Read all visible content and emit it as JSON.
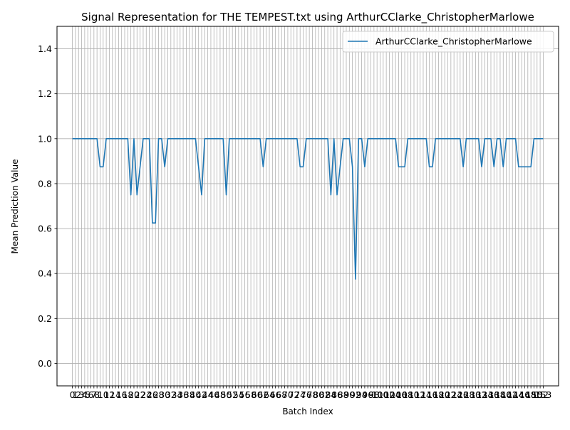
{
  "chart_data": {
    "type": "line",
    "title": "Signal Representation for THE TEMPEST.txt using ArthurCClarke_ChristopherMarlowe",
    "xlabel": "Batch Index",
    "ylabel": "Mean Prediction Value",
    "xlim": [
      -5,
      158
    ],
    "ylim": [
      -0.1,
      1.5
    ],
    "yticks": [
      "0.0",
      "0.2",
      "0.4",
      "0.6",
      "0.8",
      "1.0",
      "1.2",
      "1.4"
    ],
    "xtick_labels_visible_start": [
      "0",
      "1",
      "2",
      "3",
      "4",
      "5",
      "6",
      "7",
      "8"
    ],
    "xtick_labels_visible_end": [
      "153"
    ],
    "grid": true,
    "legend": {
      "position": "top-right",
      "entries": [
        "ArthurCClarke_ChristopherMarlowe"
      ]
    },
    "series": [
      {
        "name": "ArthurCClarke_ChristopherMarlowe",
        "color": "#1f77b4",
        "x": [
          0,
          1,
          2,
          3,
          4,
          5,
          6,
          7,
          8,
          9,
          10,
          11,
          12,
          13,
          14,
          15,
          16,
          17,
          18,
          19,
          20,
          21,
          22,
          23,
          24,
          25,
          26,
          27,
          28,
          29,
          30,
          31,
          32,
          33,
          34,
          35,
          36,
          37,
          38,
          39,
          40,
          41,
          42,
          43,
          44,
          45,
          46,
          47,
          48,
          49,
          50,
          51,
          52,
          53,
          54,
          55,
          56,
          57,
          58,
          59,
          60,
          61,
          62,
          63,
          64,
          65,
          66,
          67,
          68,
          69,
          70,
          71,
          72,
          73,
          74,
          75,
          76,
          77,
          78,
          79,
          80,
          81,
          82,
          83,
          84,
          85,
          86,
          87,
          88,
          89,
          90,
          91,
          92,
          93,
          94,
          95,
          96,
          97,
          98,
          99,
          100,
          101,
          102,
          103,
          104,
          105,
          106,
          107,
          108,
          109,
          110,
          111,
          112,
          113,
          114,
          115,
          116,
          117,
          118,
          119,
          120,
          121,
          122,
          123,
          124,
          125,
          126,
          127,
          128,
          129,
          130,
          131,
          132,
          133,
          134,
          135,
          136,
          137,
          138,
          139,
          140,
          141,
          142,
          143,
          144,
          145,
          146,
          147,
          148,
          149,
          150,
          151,
          152,
          153
        ],
        "values": [
          1.0,
          1.0,
          1.0,
          1.0,
          1.0,
          1.0,
          1.0,
          1.0,
          1.0,
          0.875,
          0.875,
          1.0,
          1.0,
          1.0,
          1.0,
          1.0,
          1.0,
          1.0,
          1.0,
          0.75,
          1.0,
          0.75,
          0.875,
          1.0,
          1.0,
          1.0,
          0.625,
          0.625,
          1.0,
          1.0,
          0.875,
          1.0,
          1.0,
          1.0,
          1.0,
          1.0,
          1.0,
          1.0,
          1.0,
          1.0,
          1.0,
          0.875,
          0.75,
          1.0,
          1.0,
          1.0,
          1.0,
          1.0,
          1.0,
          1.0,
          0.75,
          1.0,
          1.0,
          1.0,
          1.0,
          1.0,
          1.0,
          1.0,
          1.0,
          1.0,
          1.0,
          1.0,
          0.875,
          1.0,
          1.0,
          1.0,
          1.0,
          1.0,
          1.0,
          1.0,
          1.0,
          1.0,
          1.0,
          1.0,
          0.875,
          0.875,
          1.0,
          1.0,
          1.0,
          1.0,
          1.0,
          1.0,
          1.0,
          1.0,
          0.75,
          1.0,
          0.75,
          0.875,
          1.0,
          1.0,
          1.0,
          0.875,
          0.375,
          1.0,
          1.0,
          0.875,
          1.0,
          1.0,
          1.0,
          1.0,
          1.0,
          1.0,
          1.0,
          1.0,
          1.0,
          1.0,
          0.875,
          0.875,
          0.875,
          1.0,
          1.0,
          1.0,
          1.0,
          1.0,
          1.0,
          1.0,
          0.875,
          0.875,
          1.0,
          1.0,
          1.0,
          1.0,
          1.0,
          1.0,
          1.0,
          1.0,
          1.0,
          0.875,
          1.0,
          1.0,
          1.0,
          1.0,
          1.0,
          0.875,
          1.0,
          1.0,
          1.0,
          0.875,
          1.0,
          1.0,
          0.875,
          1.0,
          1.0,
          1.0,
          1.0,
          0.875,
          0.875,
          0.875,
          0.875,
          0.875,
          1.0,
          1.0,
          1.0,
          1.0
        ]
      }
    ]
  }
}
